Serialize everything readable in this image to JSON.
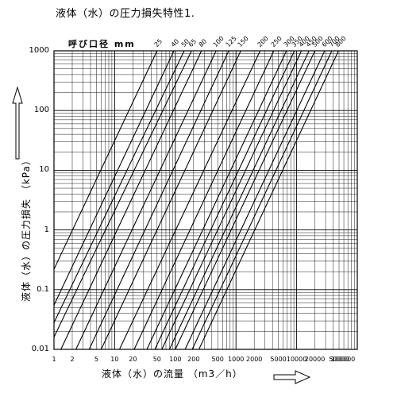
{
  "title": "液体（水）の圧力損失特性1.",
  "nominal_label": "呼び口径 mm",
  "chart_data": {
    "type": "line",
    "title": "液体（水）の圧力損失特性1.",
    "xlabel": "液体（水）の流量 （m3／h）",
    "ylabel": "液体（水）の圧力損失 （kPa）",
    "xscale": "log",
    "yscale": "log",
    "xlim": [
      1,
      100000
    ],
    "ylim": [
      0.01,
      1000
    ],
    "grid": true,
    "x_ticks": [
      "1",
      "2",
      "5",
      "10",
      "20",
      "50",
      "100",
      "200",
      "500",
      "1000",
      "2000",
      "5000",
      "10000",
      "20000",
      "50000",
      "100000"
    ],
    "y_ticks": [
      "1000",
      "100",
      "10",
      "1",
      "0.1",
      "0.01"
    ],
    "series": [
      {
        "name": "25",
        "points": [
          [
            1,
            0.22
          ],
          [
            50,
            1000
          ]
        ]
      },
      {
        "name": "40",
        "points": [
          [
            1,
            0.055
          ],
          [
            95,
            1000
          ]
        ]
      },
      {
        "name": "50",
        "points": [
          [
            1,
            0.028
          ],
          [
            140,
            1000
          ]
        ]
      },
      {
        "name": "65",
        "points": [
          [
            1,
            0.016
          ],
          [
            185,
            1000
          ]
        ]
      },
      {
        "name": "80",
        "points": [
          [
            1.3,
            0.01
          ],
          [
            270,
            1000
          ]
        ]
      },
      {
        "name": "100",
        "points": [
          [
            2.3,
            0.01
          ],
          [
            470,
            1000
          ]
        ]
      },
      {
        "name": "125",
        "points": [
          [
            3.8,
            0.01
          ],
          [
            760,
            1000
          ]
        ]
      },
      {
        "name": "150",
        "points": [
          [
            6,
            0.01
          ],
          [
            1200,
            1000
          ]
        ]
      },
      {
        "name": "200",
        "points": [
          [
            12,
            0.01
          ],
          [
            2500,
            1000
          ]
        ]
      },
      {
        "name": "250",
        "points": [
          [
            21,
            0.01
          ],
          [
            4200,
            1000
          ]
        ]
      },
      {
        "name": "300",
        "points": [
          [
            34,
            0.01
          ],
          [
            6800,
            1000
          ]
        ]
      },
      {
        "name": "350",
        "points": [
          [
            46,
            0.01
          ],
          [
            9200,
            1000
          ]
        ]
      },
      {
        "name": "400",
        "points": [
          [
            60,
            0.01
          ],
          [
            12000,
            1000
          ]
        ]
      },
      {
        "name": "450",
        "points": [
          [
            80,
            0.01
          ],
          [
            16000,
            1000
          ]
        ]
      },
      {
        "name": "500",
        "points": [
          [
            100,
            0.01
          ],
          [
            20000,
            1000
          ]
        ]
      },
      {
        "name": "600",
        "points": [
          [
            145,
            0.01
          ],
          [
            29000,
            1000
          ]
        ]
      },
      {
        "name": "700",
        "points": [
          [
            190,
            0.01
          ],
          [
            38000,
            1000
          ]
        ]
      },
      {
        "name": "800",
        "points": [
          [
            245,
            0.01
          ],
          [
            49000,
            1000
          ]
        ]
      }
    ]
  }
}
